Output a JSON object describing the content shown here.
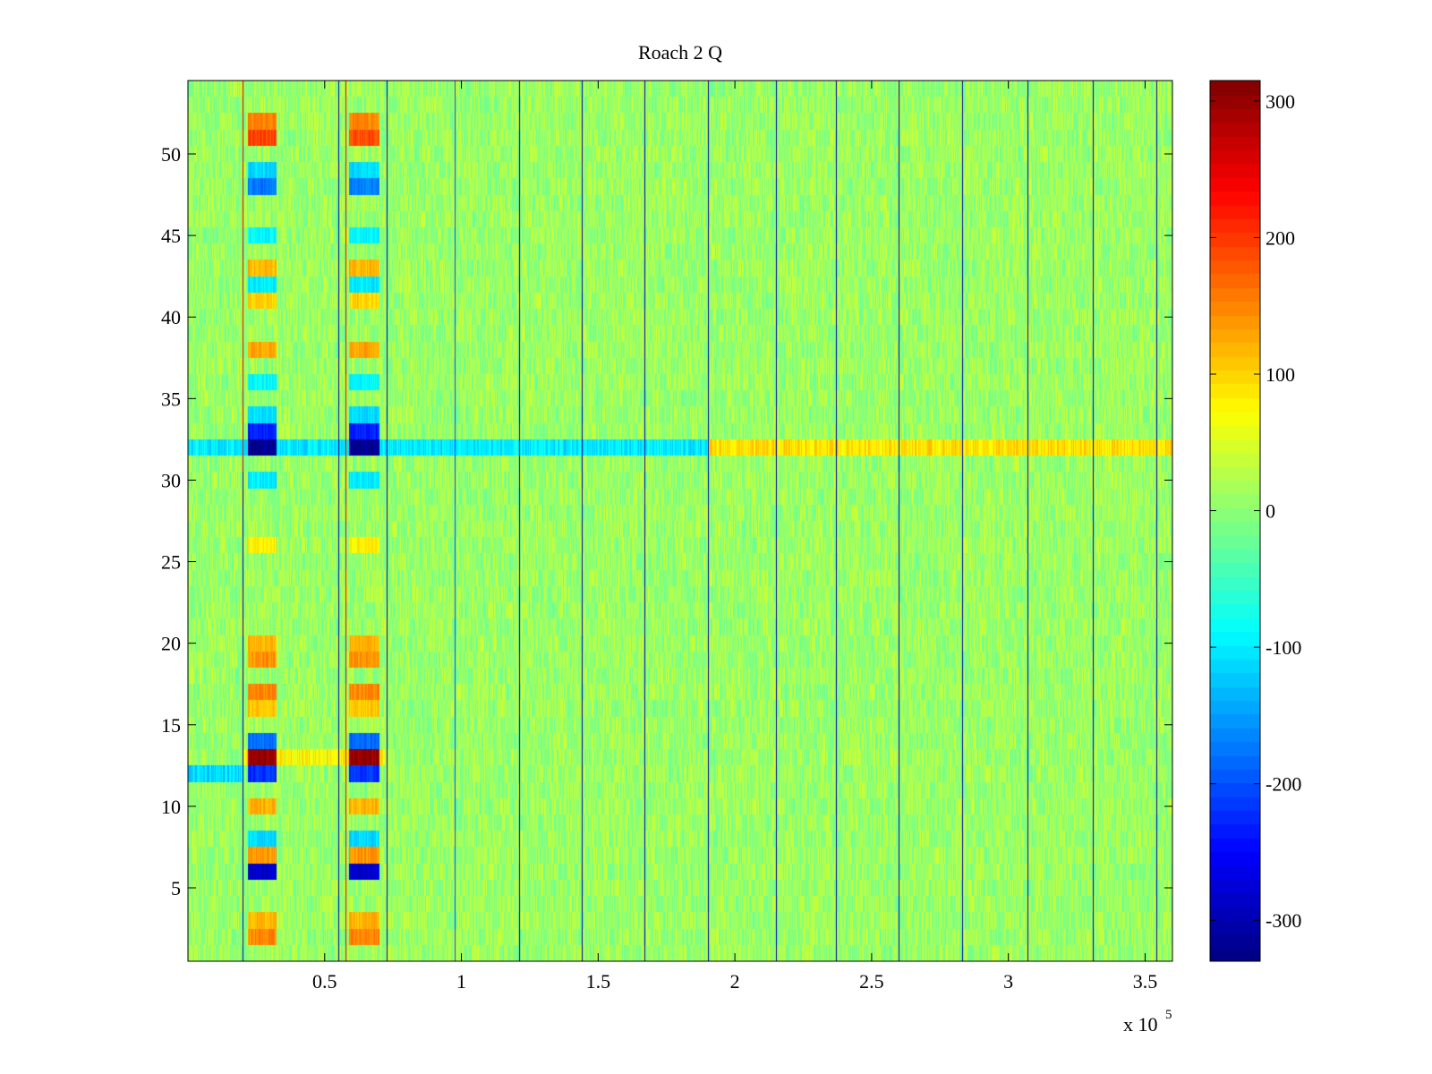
{
  "chart_data": {
    "type": "heatmap",
    "title": "Roach 2 Q",
    "xlabel": "",
    "ylabel": "",
    "x_range": [
      0,
      360000
    ],
    "y_range": [
      0.5,
      54.5
    ],
    "n_rows": 54,
    "x_multiplier_label": "x 10",
    "x_multiplier_exponent": "5",
    "x_ticks": [
      {
        "value": 50000,
        "label": "0.5"
      },
      {
        "value": 100000,
        "label": "1"
      },
      {
        "value": 150000,
        "label": "1.5"
      },
      {
        "value": 200000,
        "label": "2"
      },
      {
        "value": 250000,
        "label": "2.5"
      },
      {
        "value": 300000,
        "label": "3"
      },
      {
        "value": 350000,
        "label": "3.5"
      }
    ],
    "y_ticks": [
      {
        "value": 5,
        "label": "5"
      },
      {
        "value": 10,
        "label": "10"
      },
      {
        "value": 15,
        "label": "15"
      },
      {
        "value": 20,
        "label": "20"
      },
      {
        "value": 25,
        "label": "25"
      },
      {
        "value": 30,
        "label": "30"
      },
      {
        "value": 35,
        "label": "35"
      },
      {
        "value": 40,
        "label": "40"
      },
      {
        "value": 45,
        "label": "45"
      },
      {
        "value": 50,
        "label": "50"
      }
    ],
    "colorbar": {
      "colormap": "jet",
      "range": [
        -330,
        315
      ],
      "ticks": [
        {
          "value": 300,
          "label": "300"
        },
        {
          "value": 200,
          "label": "200"
        },
        {
          "value": 100,
          "label": "100"
        },
        {
          "value": 0,
          "label": "0"
        },
        {
          "value": -100,
          "label": "-100"
        },
        {
          "value": -200,
          "label": "-200"
        },
        {
          "value": -300,
          "label": "-300"
        }
      ]
    },
    "background_level": 10,
    "noise_amplitude": 35,
    "vertical_stripes": [
      {
        "x": 20000,
        "value": -300,
        "rows": [
          1,
          30
        ]
      },
      {
        "x": 20000,
        "value": 250,
        "rows": [
          31,
          54
        ]
      },
      {
        "x": 55000,
        "value": -300,
        "rows": [
          1,
          54
        ]
      },
      {
        "x": 57500,
        "value": 250,
        "rows": [
          1,
          54
        ]
      },
      {
        "x": 72500,
        "value": -300,
        "rows": [
          1,
          54
        ]
      },
      {
        "x": 97500,
        "value": -200,
        "rows": [
          1,
          54
        ]
      },
      {
        "x": 121000,
        "value": -300,
        "rows": [
          1,
          54
        ]
      },
      {
        "x": 144000,
        "value": -300,
        "rows": [
          1,
          54
        ]
      },
      {
        "x": 167000,
        "value": -300,
        "rows": [
          1,
          54
        ]
      },
      {
        "x": 190000,
        "value": -300,
        "rows": [
          1,
          54
        ]
      },
      {
        "x": 215000,
        "value": -300,
        "rows": [
          1,
          54
        ]
      },
      {
        "x": 237000,
        "value": -300,
        "rows": [
          1,
          54
        ]
      },
      {
        "x": 260000,
        "value": -300,
        "rows": [
          1,
          54
        ]
      },
      {
        "x": 283000,
        "value": -300,
        "rows": [
          1,
          54
        ]
      },
      {
        "x": 307000,
        "value": -300,
        "rows": [
          1,
          54
        ]
      },
      {
        "x": 331000,
        "value": -300,
        "rows": [
          1,
          54
        ]
      },
      {
        "x": 354000,
        "value": -300,
        "rows": [
          1,
          54
        ]
      }
    ],
    "row_bands": [
      {
        "row": 32,
        "x_start": 0,
        "x_end": 190000,
        "value": -100
      },
      {
        "row": 32,
        "x_start": 190000,
        "x_end": 360000,
        "value": 90
      },
      {
        "row": 12,
        "x_start": 0,
        "x_end": 20000,
        "value": -110
      },
      {
        "row": 13,
        "x_start": 20000,
        "x_end": 72000,
        "value": 80
      }
    ],
    "block_features": [
      {
        "x_range": [
          22000,
          32500
        ],
        "row": 2,
        "value": 150
      },
      {
        "x_range": [
          22000,
          32500
        ],
        "row": 3,
        "value": 120
      },
      {
        "x_range": [
          22000,
          32500
        ],
        "row": 6,
        "value": -280
      },
      {
        "x_range": [
          22000,
          32500
        ],
        "row": 7,
        "value": 140
      },
      {
        "x_range": [
          22000,
          32500
        ],
        "row": 8,
        "value": -110
      },
      {
        "x_range": [
          22000,
          32500
        ],
        "row": 10,
        "value": 120
      },
      {
        "x_range": [
          22000,
          32500
        ],
        "row": 12,
        "value": -220
      },
      {
        "x_range": [
          22000,
          32500
        ],
        "row": 13,
        "value": 300
      },
      {
        "x_range": [
          22000,
          32500
        ],
        "row": 14,
        "value": -180
      },
      {
        "x_range": [
          22000,
          32500
        ],
        "row": 16,
        "value": 110
      },
      {
        "x_range": [
          22000,
          32500
        ],
        "row": 17,
        "value": 150
      },
      {
        "x_range": [
          22000,
          32500
        ],
        "row": 19,
        "value": 140
      },
      {
        "x_range": [
          22000,
          32500
        ],
        "row": 20,
        "value": 120
      },
      {
        "x_range": [
          22000,
          32500
        ],
        "row": 26,
        "value": 80
      },
      {
        "x_range": [
          22000,
          32500
        ],
        "row": 30,
        "value": -100
      },
      {
        "x_range": [
          22000,
          32500
        ],
        "row": 32,
        "value": -320
      },
      {
        "x_range": [
          22000,
          32500
        ],
        "row": 33,
        "value": -230
      },
      {
        "x_range": [
          22000,
          32500
        ],
        "row": 34,
        "value": -110
      },
      {
        "x_range": [
          22000,
          32500
        ],
        "row": 36,
        "value": -90
      },
      {
        "x_range": [
          22000,
          32500
        ],
        "row": 38,
        "value": 130
      },
      {
        "x_range": [
          22000,
          32500
        ],
        "row": 41,
        "value": 100
      },
      {
        "x_range": [
          22000,
          32500
        ],
        "row": 42,
        "value": -100
      },
      {
        "x_range": [
          22000,
          32500
        ],
        "row": 43,
        "value": 120
      },
      {
        "x_range": [
          22000,
          32500
        ],
        "row": 45,
        "value": -90
      },
      {
        "x_range": [
          22000,
          32500
        ],
        "row": 48,
        "value": -170
      },
      {
        "x_range": [
          22000,
          32500
        ],
        "row": 49,
        "value": -110
      },
      {
        "x_range": [
          22000,
          32500
        ],
        "row": 51,
        "value": 190
      },
      {
        "x_range": [
          22000,
          32500
        ],
        "row": 52,
        "value": 150
      },
      {
        "x_range": [
          59000,
          70000
        ],
        "row": 2,
        "value": 150
      },
      {
        "x_range": [
          59000,
          70000
        ],
        "row": 3,
        "value": 120
      },
      {
        "x_range": [
          59000,
          70000
        ],
        "row": 6,
        "value": -280
      },
      {
        "x_range": [
          59000,
          70000
        ],
        "row": 7,
        "value": 140
      },
      {
        "x_range": [
          59000,
          70000
        ],
        "row": 8,
        "value": -110
      },
      {
        "x_range": [
          59000,
          70000
        ],
        "row": 10,
        "value": 120
      },
      {
        "x_range": [
          59000,
          70000
        ],
        "row": 12,
        "value": -220
      },
      {
        "x_range": [
          59000,
          70000
        ],
        "row": 13,
        "value": 300
      },
      {
        "x_range": [
          59000,
          70000
        ],
        "row": 14,
        "value": -180
      },
      {
        "x_range": [
          59000,
          70000
        ],
        "row": 16,
        "value": 110
      },
      {
        "x_range": [
          59000,
          70000
        ],
        "row": 17,
        "value": 150
      },
      {
        "x_range": [
          59000,
          70000
        ],
        "row": 19,
        "value": 140
      },
      {
        "x_range": [
          59000,
          70000
        ],
        "row": 20,
        "value": 120
      },
      {
        "x_range": [
          59000,
          70000
        ],
        "row": 26,
        "value": 80
      },
      {
        "x_range": [
          59000,
          70000
        ],
        "row": 30,
        "value": -100
      },
      {
        "x_range": [
          59000,
          70000
        ],
        "row": 32,
        "value": -320
      },
      {
        "x_range": [
          59000,
          70000
        ],
        "row": 33,
        "value": -230
      },
      {
        "x_range": [
          59000,
          70000
        ],
        "row": 34,
        "value": -110
      },
      {
        "x_range": [
          59000,
          70000
        ],
        "row": 36,
        "value": -90
      },
      {
        "x_range": [
          59000,
          70000
        ],
        "row": 38,
        "value": 130
      },
      {
        "x_range": [
          59000,
          70000
        ],
        "row": 41,
        "value": 100
      },
      {
        "x_range": [
          59000,
          70000
        ],
        "row": 42,
        "value": -100
      },
      {
        "x_range": [
          59000,
          70000
        ],
        "row": 43,
        "value": 120
      },
      {
        "x_range": [
          59000,
          70000
        ],
        "row": 45,
        "value": -90
      },
      {
        "x_range": [
          59000,
          70000
        ],
        "row": 48,
        "value": -170
      },
      {
        "x_range": [
          59000,
          70000
        ],
        "row": 49,
        "value": -110
      },
      {
        "x_range": [
          59000,
          70000
        ],
        "row": 51,
        "value": 190
      },
      {
        "x_range": [
          59000,
          70000
        ],
        "row": 52,
        "value": 150
      }
    ]
  }
}
